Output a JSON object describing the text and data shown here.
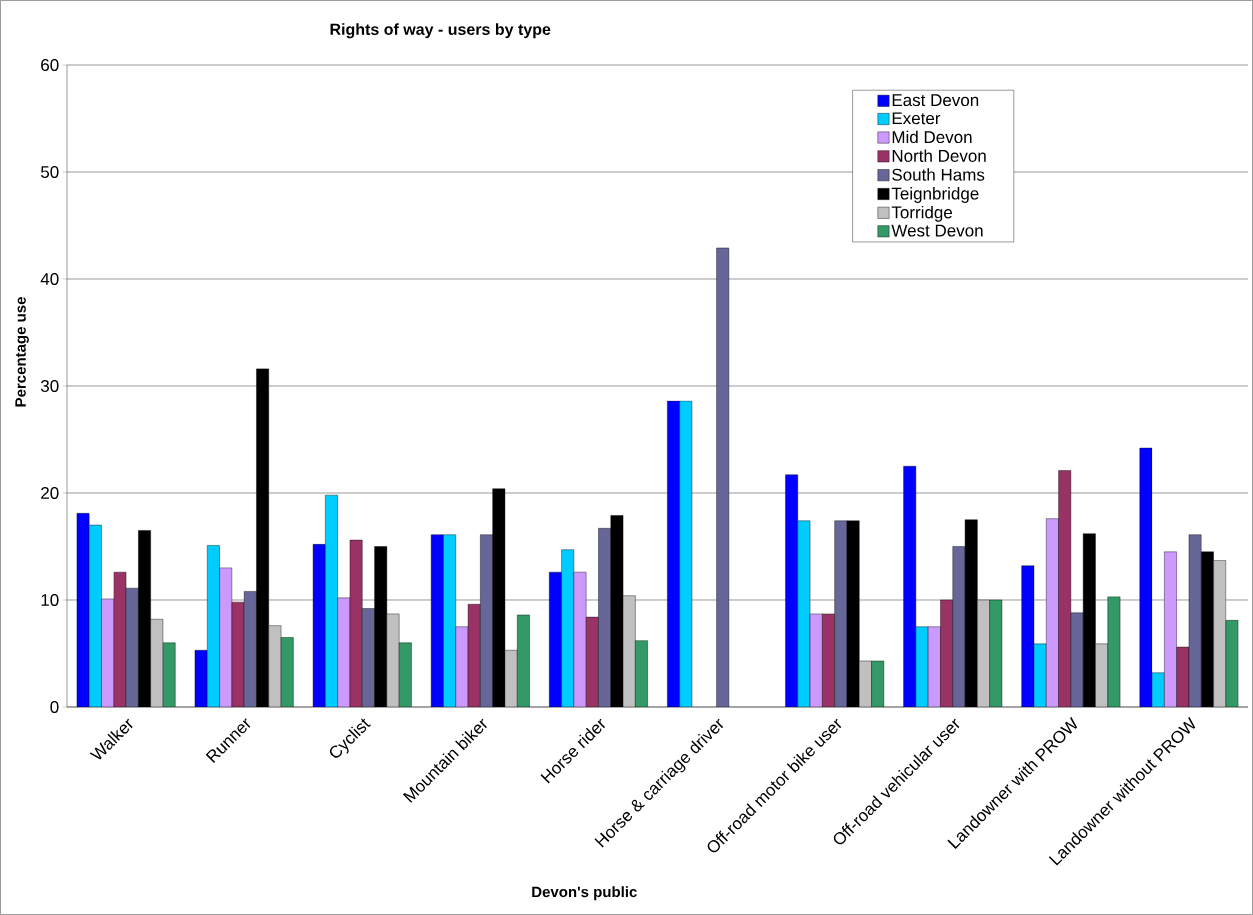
{
  "chart_data": {
    "type": "bar",
    "title": "Rights of way - users by type",
    "xlabel": "Devon's public",
    "ylabel": "Percentage use",
    "categories": [
      "Walker",
      "Runner",
      "Cyclist",
      "Mountain biker",
      "Horse rider",
      "Horse & carriage driver",
      "Off-road motor bike user",
      "Off-road vehicular user",
      "Landowner with PROW",
      "Landowner without PROW"
    ],
    "ylim": [
      0,
      60
    ],
    "yticks": [
      0,
      10,
      20,
      30,
      40,
      50,
      60
    ],
    "grid": "y",
    "legend": "top right",
    "series": [
      {
        "name": "East Devon",
        "color": "#0000ff",
        "values": [
          18.1,
          5.3,
          15.2,
          16.1,
          12.6,
          28.6,
          21.7,
          22.5,
          13.2,
          24.2
        ]
      },
      {
        "name": "Exeter",
        "color": "#00ccff",
        "values": [
          17.0,
          15.1,
          19.8,
          16.1,
          14.7,
          28.6,
          17.4,
          7.5,
          5.9,
          3.2
        ]
      },
      {
        "name": "Mid Devon",
        "color": "#cc99ff",
        "values": [
          10.1,
          13.0,
          10.2,
          7.5,
          12.6,
          null,
          8.7,
          7.5,
          17.6,
          14.5
        ]
      },
      {
        "name": "North Devon",
        "color": "#993366",
        "values": [
          12.6,
          9.8,
          15.6,
          9.6,
          8.4,
          null,
          8.7,
          10.0,
          22.1,
          5.6
        ]
      },
      {
        "name": "South Hams",
        "color": "#666699",
        "values": [
          11.1,
          10.8,
          9.2,
          16.1,
          16.7,
          42.9,
          17.4,
          15.0,
          8.8,
          16.1
        ]
      },
      {
        "name": "Teignbridge",
        "color": "#000000",
        "values": [
          16.5,
          31.6,
          15.0,
          20.4,
          17.9,
          null,
          17.4,
          17.5,
          16.2,
          14.5
        ]
      },
      {
        "name": "Torridge",
        "color": "#c0c0c0",
        "values": [
          8.2,
          7.6,
          8.7,
          5.3,
          10.4,
          null,
          4.3,
          10.0,
          5.9,
          13.7
        ]
      },
      {
        "name": "West Devon",
        "color": "#339966",
        "values": [
          6.0,
          6.5,
          6.0,
          8.6,
          6.2,
          null,
          4.3,
          10.0,
          10.3,
          8.1
        ]
      }
    ]
  }
}
